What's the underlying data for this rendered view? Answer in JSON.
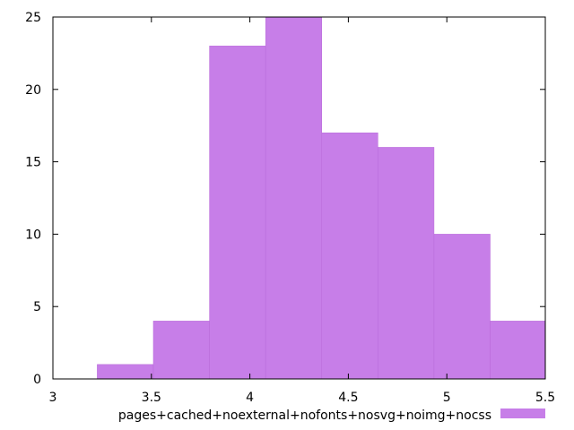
{
  "chart_data": {
    "type": "bar",
    "title": "",
    "xlabel": "",
    "ylabel": "",
    "xlim": [
      3,
      5.5
    ],
    "ylim": [
      0,
      25
    ],
    "x_ticks": [
      3,
      3.5,
      4,
      4.5,
      5,
      5.5
    ],
    "x_tick_labels": [
      "3",
      "3.5",
      "4",
      "4.5",
      "5",
      "5.5"
    ],
    "y_ticks": [
      0,
      5,
      10,
      15,
      20,
      25
    ],
    "y_tick_labels": [
      "0",
      "5",
      "10",
      "15",
      "20",
      "25"
    ],
    "bin_edges": [
      3.225,
      3.51,
      3.795,
      4.08,
      4.365,
      4.65,
      4.935,
      5.22,
      5.505
    ],
    "values": [
      1,
      4,
      23,
      25,
      17,
      16,
      10,
      4
    ],
    "grid": false,
    "legend": {
      "position": "bottom-center",
      "label": "pages+cached+noexternal+nofonts+nosvg+noimg+nocss"
    },
    "colors": {
      "bar_fill": "#c77ee8",
      "bar_edge": "#b86ad9",
      "axis": "#000000",
      "background": "#ffffff"
    }
  }
}
